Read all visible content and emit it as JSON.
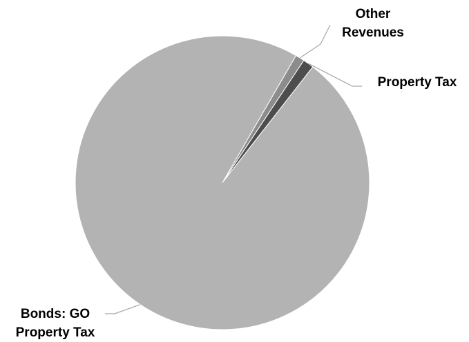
{
  "chart_data": {
    "type": "pie",
    "title": "",
    "slices": [
      {
        "label": "Other Revenues",
        "value": 1.0,
        "color": "#8c8c8c",
        "label_lines": [
          "Other",
          "Revenues"
        ]
      },
      {
        "label": "Property Tax",
        "value": 1.2,
        "color": "#4d4d4d",
        "label_lines": [
          "Property Tax"
        ]
      },
      {
        "label": "Bonds: GO Property Tax",
        "value": 97.8,
        "color": "#b3b3b3",
        "label_lines": [
          "Bonds: GO",
          "Property Tax"
        ]
      }
    ],
    "start_angle_deg": 30,
    "legend": "none",
    "data_labels": "outside-with-leader-lines"
  }
}
